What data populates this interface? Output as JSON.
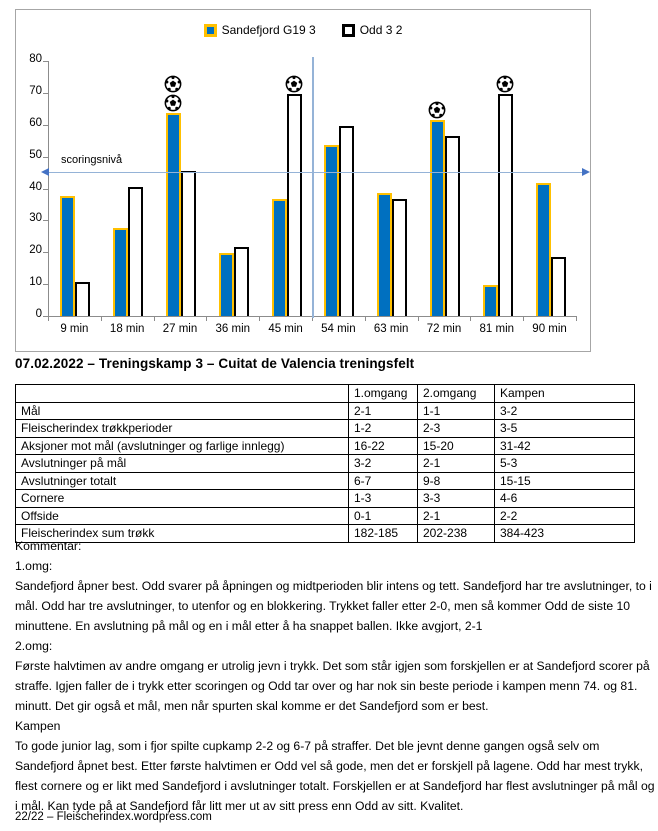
{
  "page": {
    "title": "07.02.2022 – Treningskamp 3 – Cuitat de Valencia treningsfelt",
    "footer": "22/22 – Fleischerindex.wordpress.com"
  },
  "chart_data": {
    "type": "bar",
    "title": "",
    "categories": [
      "9 min",
      "18 min",
      "27 min",
      "36 min",
      "45 min",
      "54 min",
      "63 min",
      "72 min",
      "81 min",
      "90 min"
    ],
    "series": [
      {
        "name": "Sandefjord G19 3",
        "color": "#0070C0",
        "border_color": "#FFC000",
        "values": [
          37,
          27,
          63,
          19,
          36,
          53,
          38,
          61,
          9,
          41
        ],
        "goal_markers": [
          0,
          0,
          2,
          0,
          0,
          0,
          0,
          1,
          0,
          0
        ]
      },
      {
        "name": "Odd 3 2",
        "color": "#FFFFFF",
        "border_color": "#000000",
        "values": [
          10,
          40,
          45,
          21,
          69,
          59,
          36,
          56,
          69,
          18
        ],
        "goal_markers": [
          0,
          0,
          0,
          0,
          1,
          0,
          0,
          0,
          1,
          0
        ]
      }
    ],
    "xlabel": "",
    "ylabel": "",
    "ylim": [
      0,
      80
    ],
    "ytick_step": 10,
    "grid": false,
    "legend_position": "top-center",
    "reference_line": {
      "value": 45,
      "label": "scoringsnivå",
      "line_color": "#95B3D7",
      "arrow_color": "#4472C4"
    },
    "halftime_separator": {
      "after_category": "45 min",
      "color": "#95B3D7"
    }
  },
  "table": {
    "header": [
      "",
      "1.omgang",
      "2.omgang",
      "Kampen"
    ],
    "rows": [
      [
        "Mål",
        "2-1",
        "1-1",
        "3-2"
      ],
      [
        "Fleischerindex trøkkperioder",
        "1-2",
        "2-3",
        "3-5"
      ],
      [
        "Aksjoner mot mål (avslutninger og farlige innlegg)",
        "16-22",
        "15-20",
        "31-42"
      ],
      [
        "Avslutninger på mål",
        "3-2",
        "2-1",
        "5-3"
      ],
      [
        "Avslutninger totalt",
        "6-7",
        "9-8",
        "15-15"
      ],
      [
        "Cornere",
        "1-3",
        "3-3",
        "4-6"
      ],
      [
        "Offside",
        "0-1",
        "2-1",
        "2-2"
      ],
      [
        "Fleischerindex sum trøkk",
        "182-185",
        "202-238",
        "384-423"
      ]
    ]
  },
  "commentary": {
    "lines": [
      "Kommentar:",
      "1.omg:",
      "Sandefjord åpner best. Odd svarer på åpningen og midtperioden blir intens og tett. Sandefjord har tre avslutninger, to i mål. Odd har tre avslutninger, to utenfor og en blokkering. Trykket faller etter 2-0, men så kommer Odd de siste 10 minuttene. En avslutning på mål og en i mål etter å ha snappet ballen. Ikke avgjort, 2-1",
      "2.omg:",
      "Første halvtimen av andre omgang er utrolig jevn i trykk. Det som står igjen som forskjellen er at Sandefjord scorer på straffe. Igjen faller de i trykk etter scoringen og Odd tar over og har nok sin beste periode i kampen menn 74. og 81. minutt. Det gir også et mål, men når spurten skal komme er det Sandefjord som er best.",
      "Kampen",
      "To gode junior lag, som i fjor spilte cupkamp 2-2 og 6-7 på straffer. Det ble jevnt denne gangen også selv om Sandefjord åpnet best. Etter første halvtimen er Odd vel så gode, men det er forskjell på lagene. Odd har mest trykk, flest cornere og er likt med Sandefjord i avslutninger totalt. Forskjellen er at Sandefjord har flest avslutninger på mål og i mål. Kan tyde på at Sandefjord får litt mer ut av sitt press enn Odd av sitt. Kvalitet."
    ]
  }
}
